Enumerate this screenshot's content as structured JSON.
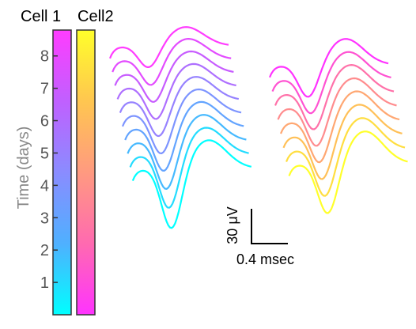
{
  "chart_data": {
    "type": "line",
    "legend_title_left": "Cell 1",
    "legend_title_right": "Cell2",
    "time_axis": {
      "label": "Time (days)",
      "ticks": [
        "1",
        "2",
        "3",
        "4",
        "5",
        "6",
        "7",
        "8"
      ],
      "range": [
        0,
        8.8
      ]
    },
    "colormaps": {
      "cell1": [
        "#00ffff",
        "#4fb0ff",
        "#8a8cff",
        "#c060ff",
        "#ff3cff"
      ],
      "cell2": [
        "#ff33ff",
        "#ff6ab0",
        "#ff9a80",
        "#ffc650",
        "#ffff2a"
      ]
    },
    "scale_bar": {
      "voltage_label": "30 μV",
      "time_label": "0.4 msec",
      "voltage_uv": 30,
      "time_ms": 0.4
    },
    "series": [
      {
        "cell": "Cell 1",
        "day": 8,
        "trough_depth": 0.66,
        "peak_height": 0.53
      },
      {
        "cell": "Cell 1",
        "day": 7,
        "trough_depth": 0.78,
        "peak_height": 0.58
      },
      {
        "cell": "Cell 1",
        "day": 6,
        "trough_depth": 0.88,
        "peak_height": 0.61
      },
      {
        "cell": "Cell 1",
        "day": 5,
        "trough_depth": 0.98,
        "peak_height": 0.64
      },
      {
        "cell": "Cell 1",
        "day": 4,
        "trough_depth": 1.08,
        "peak_height": 0.66
      },
      {
        "cell": "Cell 1",
        "day": 3,
        "trough_depth": 1.19,
        "peak_height": 0.69
      },
      {
        "cell": "Cell 1",
        "day": 2,
        "trough_depth": 1.3,
        "peak_height": 0.72
      },
      {
        "cell": "Cell 1",
        "day": 1.5,
        "trough_depth": 1.43,
        "peak_height": 0.74
      },
      {
        "cell": "Cell 1",
        "day": 1,
        "trough_depth": 1.58,
        "peak_height": 0.76
      },
      {
        "cell": "Cell 1",
        "day": 0.5,
        "trough_depth": 1.77,
        "peak_height": 0.79
      },
      {
        "cell": "Cell 2",
        "day": 8,
        "trough_depth": 0.98,
        "peak_height": 0.73
      },
      {
        "cell": "Cell 2",
        "day": 7,
        "trough_depth": 1.05,
        "peak_height": 0.76
      },
      {
        "cell": "Cell 2",
        "day": 6,
        "trough_depth": 1.11,
        "peak_height": 0.79
      },
      {
        "cell": "Cell 2",
        "day": 5,
        "trough_depth": 1.18,
        "peak_height": 0.81
      },
      {
        "cell": "Cell 2",
        "day": 4,
        "trough_depth": 1.25,
        "peak_height": 0.84
      },
      {
        "cell": "Cell 2",
        "day": 3,
        "trough_depth": 1.33,
        "peak_height": 0.86
      },
      {
        "cell": "Cell 2",
        "day": 2,
        "trough_depth": 1.41,
        "peak_height": 0.88
      },
      {
        "cell": "Cell 2",
        "day": 1,
        "trough_depth": 1.5,
        "peak_height": 0.9
      }
    ]
  }
}
